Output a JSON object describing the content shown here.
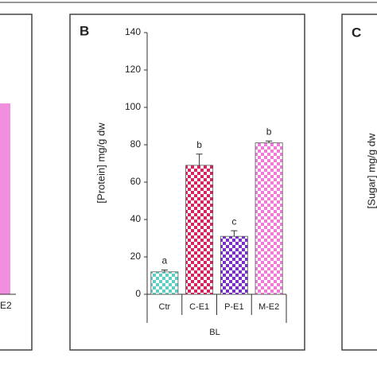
{
  "chart_data": {
    "type": "bar",
    "panel_letter": "B",
    "y_label": "[Protein]  mg/g dw",
    "group_label": "BL",
    "categories": [
      "Ctr",
      "C-E1",
      "P-E1",
      "M-E2"
    ],
    "values": [
      12,
      69,
      31,
      81
    ],
    "errors": [
      1,
      6,
      3,
      1
    ],
    "annotations": [
      "a",
      "b",
      "c",
      "b"
    ],
    "colors": [
      "#5fcfc4",
      "#d6245e",
      "#7b2fc9",
      "#f07ad8"
    ],
    "ylim": [
      0,
      140
    ],
    "yticks": [
      0,
      20,
      40,
      60,
      80,
      100,
      120,
      140
    ]
  },
  "side_panels": {
    "left": {
      "x_label": "E2"
    },
    "right": {
      "panel_letter": "C",
      "y_label": "[Sugar] mg/g dw"
    }
  }
}
